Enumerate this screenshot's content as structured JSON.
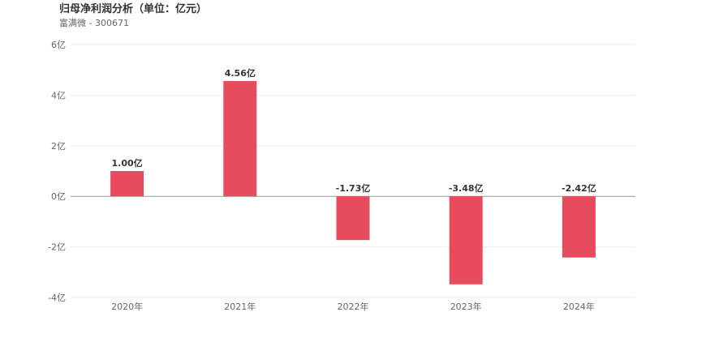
{
  "chart_data": {
    "type": "bar",
    "title": "归母净利润分析（单位：亿元）",
    "subtitle": "富满微 - 300671",
    "categories": [
      "2020年",
      "2021年",
      "2022年",
      "2023年",
      "2024年"
    ],
    "values": [
      1.0,
      4.56,
      -1.73,
      -3.48,
      -2.42
    ],
    "data_labels": [
      "1.00亿",
      "4.56亿",
      "-1.73亿",
      "-3.48亿",
      "-2.42亿"
    ],
    "y_ticks": [
      6,
      4,
      2,
      0,
      -2,
      -4
    ],
    "y_tick_labels": [
      "6亿",
      "4亿",
      "2亿",
      "0亿",
      "-2亿",
      "-4亿"
    ],
    "ylim": [
      -4,
      6
    ],
    "grid": true,
    "bar_color": "#e64c5e",
    "xlabel": "",
    "ylabel": ""
  }
}
